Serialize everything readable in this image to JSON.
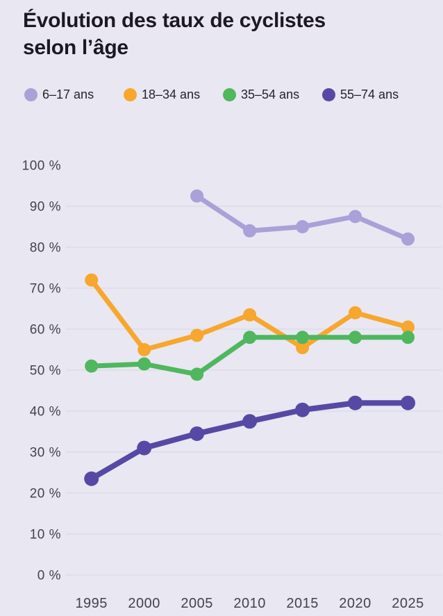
{
  "page": {
    "title_line1": "Évolution des taux de cyclistes",
    "title_line2": "selon l’âge"
  },
  "colors": {
    "background": "#e9e7f2",
    "grid": "#d8d5e2",
    "title_text": "#1d1826",
    "axis_text": "#45404e",
    "legend_text": "#262130"
  },
  "legend": {
    "items": [
      {
        "label": "6–17 ans",
        "color": "#a9a1d7"
      },
      {
        "label": "18–34 ans",
        "color": "#f7a72d"
      },
      {
        "label": "35–54 ans",
        "color": "#4fb75d"
      },
      {
        "label": "55–74 ans",
        "color": "#5649a5"
      }
    ]
  },
  "chart_data": {
    "type": "line",
    "title": "Évolution des taux de cyclistes selon l’âge",
    "xlabel": "",
    "ylabel": "",
    "unit": "%",
    "categories": [
      1995,
      2000,
      2005,
      2010,
      2015,
      2020,
      2025
    ],
    "x_tick_labels": [
      "1995",
      "2000",
      "2005",
      "2010",
      "2015",
      "2020",
      "2025"
    ],
    "y_tick_labels": [
      "0 %",
      "10 %",
      "20 %",
      "30 %",
      "40 %",
      "50 %",
      "60 %",
      "70 %",
      "80 %",
      "90 %",
      "100 %"
    ],
    "ylim": [
      0,
      100
    ],
    "y_tick_step": 10,
    "grid": "horizontal gridlines at 0–90 %, none at 100 %",
    "legend_position": "top",
    "series": [
      {
        "name": "6–17 ans",
        "color": "#a9a1d7",
        "line_width": 7,
        "dot_radius": 9.5,
        "values": [
          null,
          null,
          92.5,
          84,
          85,
          87.5,
          82
        ]
      },
      {
        "name": "18–34 ans",
        "color": "#f7a72d",
        "line_width": 7,
        "dot_radius": 9.5,
        "values": [
          72,
          55,
          58.5,
          63.5,
          55.5,
          64,
          60.5
        ]
      },
      {
        "name": "35–54 ans",
        "color": "#4fb75d",
        "line_width": 7,
        "dot_radius": 9.5,
        "values": [
          51,
          51.5,
          49,
          58,
          58,
          58,
          58
        ]
      },
      {
        "name": "55–74 ans",
        "color": "#5649a5",
        "line_width": 8,
        "dot_radius": 10.5,
        "values": [
          23.5,
          31,
          34.5,
          37.5,
          40.3,
          42,
          42
        ]
      }
    ]
  }
}
